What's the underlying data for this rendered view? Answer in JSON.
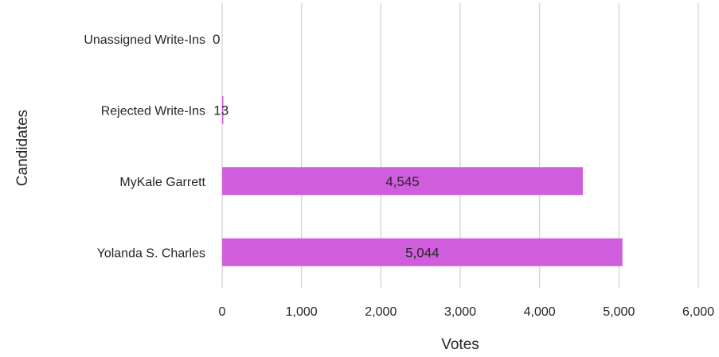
{
  "chart_data": {
    "type": "bar",
    "orientation": "horizontal",
    "categories": [
      "Unassigned Write-Ins",
      "Rejected Write-Ins",
      "MyKale Garrett",
      "Yolanda S. Charles"
    ],
    "values": [
      0,
      13,
      4545,
      5044
    ],
    "value_labels": [
      "0",
      "13",
      "4,545",
      "5,044"
    ],
    "xlabel": "Votes",
    "ylabel": "Candidates",
    "xlim": [
      0,
      6000
    ],
    "xticks": [
      0,
      1000,
      2000,
      3000,
      4000,
      5000,
      6000
    ],
    "xtick_labels": [
      "0",
      "1,000",
      "2,000",
      "3,000",
      "4,000",
      "5,000",
      "6,000"
    ],
    "bar_color": "#cf5ddc",
    "grid": "vertical",
    "legend": "none"
  }
}
